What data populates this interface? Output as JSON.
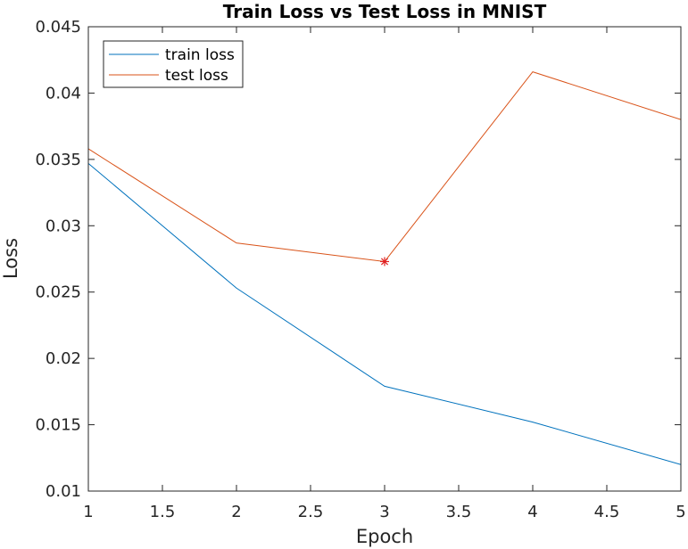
{
  "chart_data": {
    "type": "line",
    "title": "Train Loss vs Test Loss in MNIST",
    "xlabel": "Epoch",
    "ylabel": "Loss",
    "xlim": [
      1,
      5
    ],
    "ylim": [
      0.01,
      0.045
    ],
    "xticks": [
      "1",
      "1.5",
      "2",
      "2.5",
      "3",
      "3.5",
      "4",
      "4.5",
      "5"
    ],
    "yticks": [
      "0.01",
      "0.015",
      "0.02",
      "0.025",
      "0.03",
      "0.035",
      "0.04",
      "0.045"
    ],
    "x": [
      1,
      2,
      3,
      4,
      5
    ],
    "series": [
      {
        "name": "train loss",
        "color": "#0072BD",
        "values": [
          0.0347,
          0.0253,
          0.0179,
          0.0152,
          0.012
        ]
      },
      {
        "name": "test loss",
        "color": "#D95319",
        "values": [
          0.0358,
          0.0287,
          0.0273,
          0.0416,
          0.038
        ]
      }
    ],
    "marker": {
      "x": 3,
      "y": 0.0273,
      "symbol": "*",
      "color": "#E02020"
    },
    "grid": false,
    "legend": "top-left"
  }
}
